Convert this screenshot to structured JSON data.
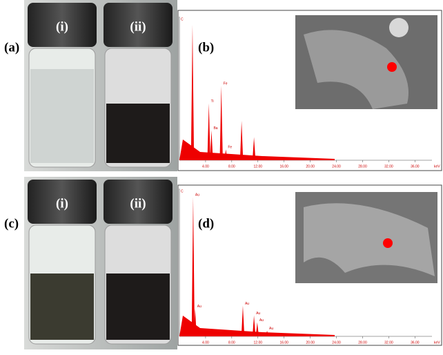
{
  "panels": [
    {
      "label": "(a)",
      "vials": [
        "(i)",
        "(ii)"
      ]
    },
    {
      "label": "(b)",
      "spectrum": {
        "ylabel": "C",
        "xunit": "keV",
        "xlim": [
          0,
          38.6
        ],
        "ylim": [
          0,
          100
        ],
        "xticks": [
          {
            "value": 4,
            "label": "4.00"
          },
          {
            "value": 8,
            "label": "8.00"
          },
          {
            "value": 12,
            "label": "12.00"
          },
          {
            "value": 16,
            "label": "16.00"
          },
          {
            "value": 20,
            "label": "20.00"
          },
          {
            "value": 24,
            "label": "24.00"
          },
          {
            "value": 28,
            "label": "28.00"
          },
          {
            "value": 32,
            "label": "32.00"
          },
          {
            "value": 36,
            "label": "36.00"
          }
        ],
        "peaks": [
          {
            "energy": 2.0,
            "height": 100
          },
          {
            "energy": 4.5,
            "height": 42,
            "label": "Ti"
          },
          {
            "energy": 4.9,
            "height": 22,
            "label": "Ba"
          },
          {
            "energy": 6.4,
            "height": 55,
            "label": "Fe"
          },
          {
            "energy": 7.1,
            "height": 8,
            "label": "Fe"
          },
          {
            "energy": 9.5,
            "height": 29
          },
          {
            "energy": 11.4,
            "height": 17
          }
        ]
      }
    },
    {
      "label": "(c)",
      "vials": [
        "(i)",
        "(ii)"
      ]
    },
    {
      "label": "(d)",
      "spectrum": {
        "ylabel": "C",
        "xunit": "keV",
        "xlim": [
          0,
          38.6
        ],
        "ylim": [
          0,
          100
        ],
        "xticks": [
          {
            "value": 4,
            "label": "4.00"
          },
          {
            "value": 8,
            "label": "8.00"
          },
          {
            "value": 12,
            "label": "12.00"
          },
          {
            "value": 16,
            "label": "16.00"
          },
          {
            "value": 20,
            "label": "20.00"
          },
          {
            "value": 24,
            "label": "24.00"
          },
          {
            "value": 28,
            "label": "28.00"
          },
          {
            "value": 32,
            "label": "32.00"
          },
          {
            "value": 36,
            "label": "36.00"
          }
        ],
        "peaks": [
          {
            "energy": 2.1,
            "height": 100,
            "label": "Au"
          },
          {
            "energy": 2.4,
            "height": 20,
            "label": "Au"
          },
          {
            "energy": 9.7,
            "height": 22,
            "label": "Au"
          },
          {
            "energy": 11.4,
            "height": 15,
            "label": "Au"
          },
          {
            "energy": 11.9,
            "height": 10,
            "label": "Au"
          },
          {
            "energy": 13.4,
            "height": 4,
            "label": "Au"
          }
        ]
      }
    }
  ]
}
